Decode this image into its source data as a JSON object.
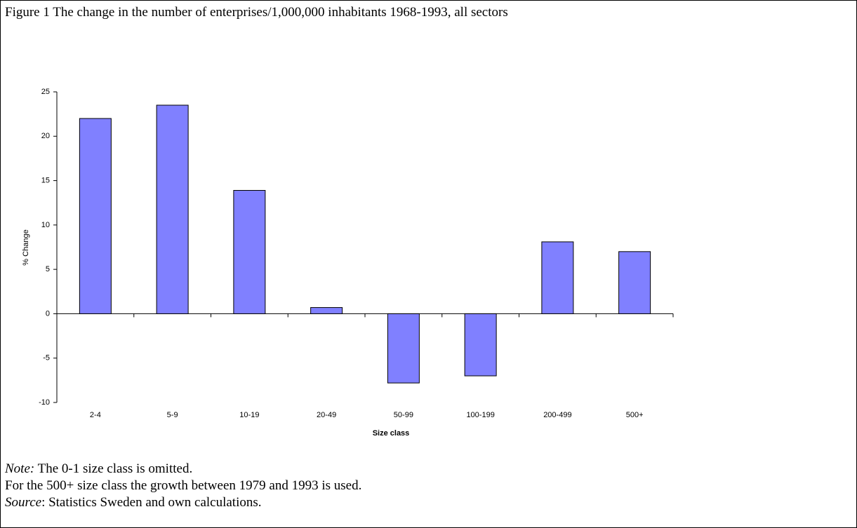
{
  "chart_data": {
    "type": "bar",
    "title": "Figure 1 The change in the number of enterprises/1,000,000 inhabitants 1968-1993, all sectors",
    "x_label": "Size class",
    "y_label": "% Change",
    "categories": [
      "2-4",
      "5-9",
      "10-19",
      "20-49",
      "50-99",
      "100-199",
      "200-499",
      "500+"
    ],
    "values": [
      22,
      23.5,
      13.9,
      0.7,
      -7.8,
      -7.0,
      8.1,
      7.0
    ],
    "color": "#8080ff",
    "ylim": [
      -10,
      25
    ],
    "yticks": [
      -10,
      -5,
      0,
      5,
      10,
      15,
      20,
      25
    ],
    "grid": false
  },
  "notes": {
    "note_label": "Note:",
    "note_text": "The 0-1 size class is omitted.",
    "line2": "For the 500+ size class the growth between 1979 and 1993 is used.",
    "source_label": "Source",
    "source_text": ": Statistics Sweden and own calculations."
  }
}
